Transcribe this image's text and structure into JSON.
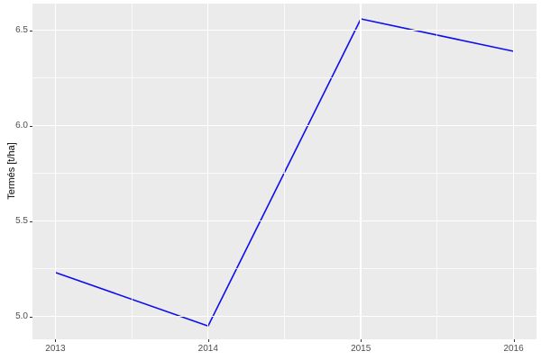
{
  "chart_data": {
    "type": "line",
    "x": [
      2013,
      2014,
      2015,
      2016
    ],
    "values": [
      5.23,
      4.95,
      6.56,
      6.39
    ],
    "series": [
      {
        "name": "Termés",
        "values": [
          5.23,
          4.95,
          6.56,
          6.39
        ]
      }
    ],
    "title": "",
    "xlabel": "",
    "ylabel": "Termés [t/ha]",
    "x_ticks": [
      2013,
      2014,
      2015,
      2016
    ],
    "x_tick_labels": [
      "2013",
      "2014",
      "2015",
      "2016"
    ],
    "y_ticks": [
      5.0,
      5.5,
      6.0,
      6.5
    ],
    "y_tick_labels": [
      "5.0",
      "5.5",
      "6.0",
      "6.5"
    ],
    "xlim": [
      2012.85,
      2016.15
    ],
    "ylim": [
      4.88,
      6.64
    ],
    "grid": "major+minor",
    "legend": "none",
    "colors": {
      "line": "#0D0DEE",
      "panel_bg": "#EBEBEB",
      "grid_major": "#FFFFFF",
      "grid_minor": "#FFFFFF",
      "tick_text": "#4D4D4D",
      "tick_mark": "#333333",
      "axis_title": "#000000",
      "outer_bg": "#FFFFFF"
    }
  }
}
